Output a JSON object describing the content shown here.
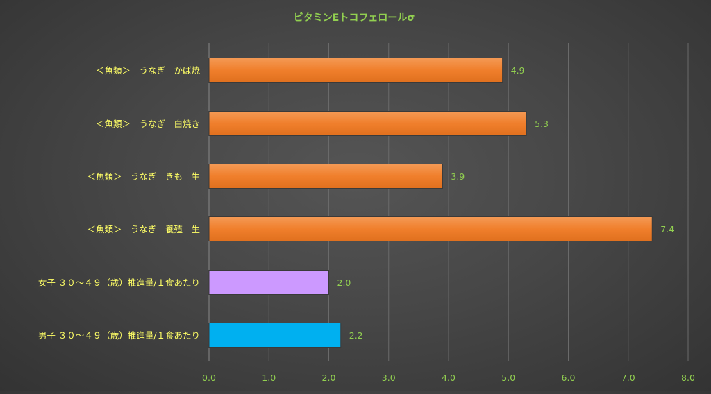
{
  "chart_data": {
    "type": "bar",
    "orientation": "horizontal",
    "title": "ビタミンEトコフェロールσ",
    "categories": [
      "＜魚類＞　うなぎ　かば焼",
      "＜魚類＞　うなぎ　白焼き",
      "＜魚類＞　うなぎ　きも　生",
      "＜魚類＞　うなぎ　養殖　生",
      "女子 ３０～４９（歳）推進量/１食あたり",
      "男子 ３０～４９（歳）推進量/１食あたり"
    ],
    "values": [
      4.9,
      5.3,
      3.9,
      7.4,
      2.0,
      2.2
    ],
    "data_labels": [
      "4.9",
      "5.3",
      "3.9",
      "7.4",
      "2.0",
      "2.2"
    ],
    "bar_colors": [
      "#f07f2c",
      "#f07f2c",
      "#f07f2c",
      "#f07f2c",
      "#cc99ff",
      "#00b0f0"
    ],
    "xlim": [
      0,
      8
    ],
    "xticks": [
      "0.0",
      "1.0",
      "2.0",
      "3.0",
      "4.0",
      "5.0",
      "6.0",
      "7.0",
      "8.0"
    ],
    "grid": "vertical",
    "legend": "none",
    "colors": {
      "title": "#92d050",
      "category_label": "#ffff66",
      "value_label": "#92d050",
      "tick_label": "#92d050",
      "gridline": "#6a6a6a",
      "axis": "#888888"
    }
  }
}
